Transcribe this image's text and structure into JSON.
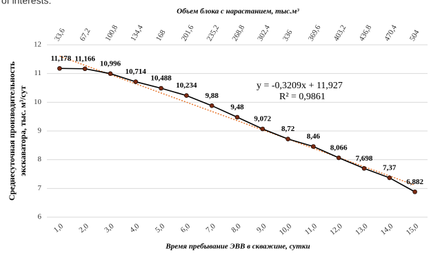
{
  "caption_fragment": "of interests.",
  "chart_data": {
    "type": "line",
    "title": "Объем блока с нарастанием, тыс.м³",
    "xlabel": "Время пребывание ЭВВ в скважине, сутки",
    "ylabel": [
      "Среднесуточная  производительность",
      "экскаватора,  тыс. м³/сут"
    ],
    "categories": [
      "1,0",
      "2,0",
      "3,0",
      "4,0",
      "5,0",
      "6,0",
      "7,0",
      "8,0",
      "9,0",
      "10,0",
      "11,0",
      "12,0",
      "13,0",
      "14,0",
      "15,0"
    ],
    "top_categories": [
      "33,6",
      "67,2",
      "100,8",
      "134,4",
      "168",
      "201,6",
      "235,2",
      "268,8",
      "302,4",
      "336",
      "369,6",
      "403,2",
      "436,8",
      "470,4",
      "504"
    ],
    "series": [
      {
        "name": "Производительность",
        "color": "#000000",
        "marker_color": "#7a2a12",
        "values": [
          11.178,
          11.166,
          10.996,
          10.714,
          10.488,
          10.234,
          9.88,
          9.48,
          9.072,
          8.72,
          8.46,
          8.066,
          7.698,
          7.37,
          6.882
        ],
        "value_labels": [
          "11,178",
          "11,166",
          "10,996",
          "10,714",
          "10,488",
          "10,234",
          "9,88",
          "9,48",
          "9,072",
          "8,72",
          "8,46",
          "8,066",
          "7,698",
          "7,37",
          "6,882"
        ]
      }
    ],
    "trendline": {
      "slope": -0.3209,
      "intercept": 11.927,
      "color": "#e8772e",
      "equation_label": "y = -0,3209x + 11,927",
      "r2_label": "R² = 0,9861"
    },
    "ylim": [
      6,
      12
    ],
    "yticks": [
      6,
      7,
      8,
      9,
      10,
      11,
      12
    ],
    "grid": true
  }
}
